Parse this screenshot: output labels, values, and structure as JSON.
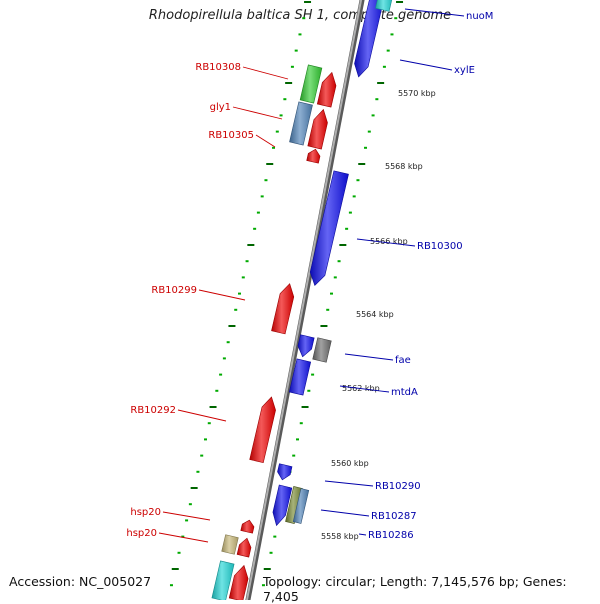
{
  "title": "Rhodopirellula baltica SH 1, complete genome",
  "footer": {
    "accession": "Accession: NC_005027",
    "topology": "Topology: circular; Length: 7,145,576 bp; Genes: 7,405"
  },
  "colors": {
    "reverse_label": "#cc0000",
    "forward_label": "#0000aa",
    "backbone": "#8a8a8a",
    "tick_minor": "#00aa00",
    "tick_major": "#006600",
    "red": "#ee0000",
    "blue": "#1111ee",
    "green": "#33cc33",
    "steelblue": "#4f83b8",
    "gray": "#6f6f6f",
    "olive": "#778833",
    "tan": "#c8b878",
    "cyan": "#22d6d6"
  },
  "scale_labels": [
    "5570 kbp",
    "5568 kbp",
    "5566 kbp",
    "5564 kbp",
    "5562 kbp",
    "5560 kbp",
    "5558 kbp"
  ],
  "left_labels": [
    "RB10308",
    "gly1",
    "RB10305",
    "RB10299",
    "RB10292",
    "hsp20",
    "hsp20"
  ],
  "right_labels": [
    "nuoM",
    "xylE",
    "RB10300",
    "fae",
    "mtdA",
    "RB10290",
    "RB10287",
    "RB10286"
  ]
}
